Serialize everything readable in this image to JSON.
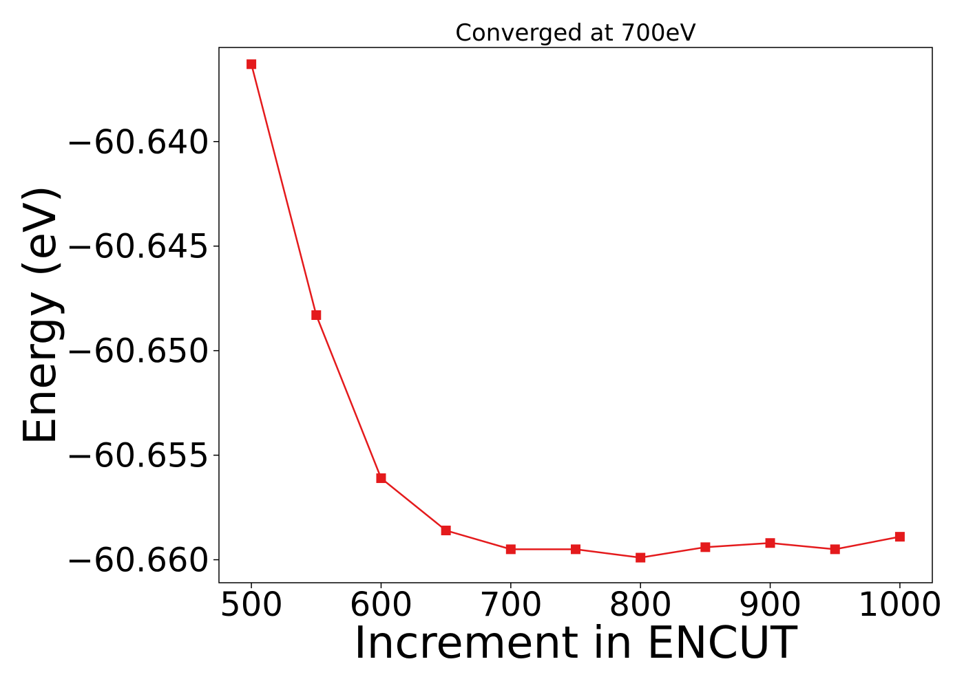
{
  "chart_data": {
    "type": "line",
    "title": "Converged at 700eV",
    "xlabel": "Increment in ENCUT",
    "ylabel": "Energy (eV)",
    "xlim": [
      475,
      1025
    ],
    "ylim": [
      -60.6611,
      -60.6355
    ],
    "xticks": [
      500,
      600,
      700,
      800,
      900,
      1000
    ],
    "xtick_labels": [
      "500",
      "600",
      "700",
      "800",
      "900",
      "1000"
    ],
    "yticks": [
      -60.64,
      -60.645,
      -60.65,
      -60.655,
      -60.66
    ],
    "ytick_labels": [
      "−60.640",
      "−60.645",
      "−60.650",
      "−60.655",
      "−60.660"
    ],
    "grid": false,
    "series": [
      {
        "marker": "square",
        "color": "#e41a1c",
        "x": [
          500,
          550,
          600,
          650,
          700,
          750,
          800,
          850,
          900,
          950,
          1000
        ],
        "y": [
          -60.6363,
          -60.6483,
          -60.6561,
          -60.6586,
          -60.6595,
          -60.6595,
          -60.6599,
          -60.6594,
          -60.6592,
          -60.6595,
          -60.6589
        ]
      }
    ]
  }
}
